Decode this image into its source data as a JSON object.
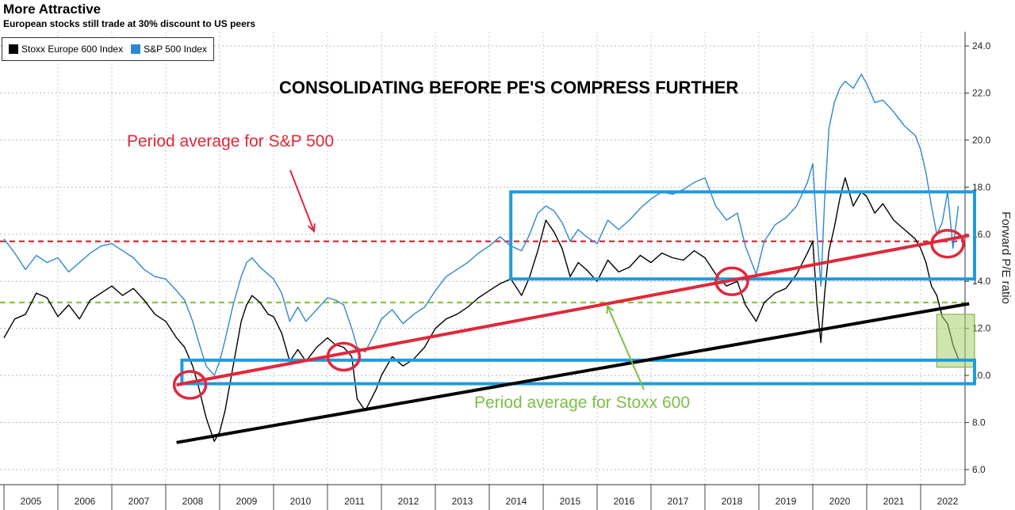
{
  "title": "More Attractive",
  "subtitle": "European stocks still trade at 30% discount to US peers",
  "annotations": {
    "headline": "CONSOLIDATING BEFORE PE'S COMPRESS FURTHER",
    "sp_avg_note": "Period average for S&P 500",
    "stoxx_avg_note": "Period average for Stoxx 600"
  },
  "colors": {
    "stoxx": "#000000",
    "sp500": "#2f86d4",
    "sp_avg": "#e0283a",
    "stoxx_avg": "#8cc63f",
    "box": "#1e9be0",
    "red_trend": "#e0283a",
    "black_trend": "#000000",
    "green_box": "#a8d06b"
  },
  "chart_data": {
    "type": "line",
    "ylabel": "Forward P/E ratio",
    "ylim": [
      6,
      24
    ],
    "yticks": [
      6.0,
      8.0,
      10.0,
      12.0,
      14.0,
      16.0,
      18.0,
      20.0,
      22.0,
      24.0
    ],
    "xlim": [
      2005.0,
      2023.0
    ],
    "xticks": [
      "2005",
      "2006",
      "2007",
      "2008",
      "2009",
      "2010",
      "2011",
      "2012",
      "2013",
      "2014",
      "2015",
      "2016",
      "2017",
      "2018",
      "2019",
      "2020",
      "2021",
      "2022"
    ],
    "legend": "top-left",
    "series": [
      {
        "name": "Stoxx Europe 600 Index",
        "x": [
          2005.0,
          2005.2,
          2005.4,
          2005.6,
          2005.8,
          2006.0,
          2006.2,
          2006.4,
          2006.6,
          2006.8,
          2007.0,
          2007.2,
          2007.4,
          2007.6,
          2007.8,
          2008.0,
          2008.2,
          2008.35,
          2008.5,
          2008.6,
          2008.75,
          2008.9,
          2009.0,
          2009.1,
          2009.25,
          2009.4,
          2009.5,
          2009.6,
          2009.75,
          2009.9,
          2010.0,
          2010.15,
          2010.3,
          2010.45,
          2010.6,
          2010.8,
          2011.0,
          2011.15,
          2011.3,
          2011.45,
          2011.55,
          2011.7,
          2011.9,
          2012.0,
          2012.2,
          2012.4,
          2012.6,
          2012.8,
          2013.0,
          2013.2,
          2013.4,
          2013.6,
          2013.8,
          2014.0,
          2014.2,
          2014.4,
          2014.6,
          2014.75,
          2014.9,
          2015.05,
          2015.2,
          2015.35,
          2015.5,
          2015.65,
          2015.8,
          2016.0,
          2016.2,
          2016.4,
          2016.6,
          2016.8,
          2017.0,
          2017.2,
          2017.4,
          2017.6,
          2017.8,
          2018.0,
          2018.2,
          2018.4,
          2018.6,
          2018.75,
          2018.95,
          2019.1,
          2019.3,
          2019.5,
          2019.7,
          2019.9,
          2020.0,
          2020.08,
          2020.15,
          2020.22,
          2020.3,
          2020.4,
          2020.5,
          2020.6,
          2020.75,
          2020.9,
          2021.0,
          2021.15,
          2021.3,
          2021.5,
          2021.7,
          2021.9,
          2022.0,
          2022.1,
          2022.2,
          2022.3,
          2022.4,
          2022.5,
          2022.6,
          2022.7
        ],
        "y": [
          11.6,
          12.4,
          12.6,
          13.5,
          13.3,
          12.5,
          13.0,
          12.4,
          13.2,
          13.5,
          13.8,
          13.4,
          13.7,
          13.2,
          12.6,
          12.3,
          11.6,
          11.2,
          10.4,
          9.6,
          8.2,
          7.2,
          7.6,
          8.5,
          10.4,
          12.3,
          13.0,
          13.4,
          13.1,
          12.6,
          12.5,
          11.8,
          10.6,
          11.1,
          10.6,
          11.2,
          11.6,
          11.3,
          11.2,
          10.8,
          9.0,
          8.5,
          9.4,
          10.0,
          10.8,
          10.4,
          10.7,
          11.2,
          12.0,
          12.4,
          12.6,
          12.9,
          13.3,
          13.6,
          13.9,
          14.1,
          13.4,
          14.2,
          15.3,
          16.6,
          16.1,
          15.4,
          14.2,
          14.8,
          14.5,
          14.0,
          14.9,
          14.4,
          14.6,
          15.1,
          14.8,
          15.2,
          15.0,
          14.9,
          15.3,
          15.0,
          14.3,
          13.8,
          14.0,
          13.0,
          12.3,
          13.1,
          13.5,
          13.7,
          14.3,
          15.2,
          15.7,
          13.0,
          11.4,
          13.5,
          15.3,
          16.3,
          17.5,
          18.4,
          17.2,
          17.8,
          17.6,
          16.9,
          17.3,
          16.6,
          16.2,
          15.8,
          15.4,
          14.8,
          13.8,
          13.4,
          12.5,
          12.2,
          11.3,
          10.7
        ]
      },
      {
        "name": "S&P 500 Index",
        "x": [
          2005.0,
          2005.2,
          2005.4,
          2005.6,
          2005.8,
          2006.0,
          2006.2,
          2006.4,
          2006.6,
          2006.8,
          2007.0,
          2007.2,
          2007.4,
          2007.6,
          2007.8,
          2008.0,
          2008.2,
          2008.35,
          2008.5,
          2008.6,
          2008.75,
          2008.9,
          2009.0,
          2009.1,
          2009.25,
          2009.4,
          2009.5,
          2009.6,
          2009.75,
          2009.9,
          2010.0,
          2010.15,
          2010.3,
          2010.45,
          2010.6,
          2010.8,
          2011.0,
          2011.15,
          2011.3,
          2011.45,
          2011.55,
          2011.7,
          2011.9,
          2012.0,
          2012.2,
          2012.4,
          2012.6,
          2012.8,
          2013.0,
          2013.2,
          2013.4,
          2013.6,
          2013.8,
          2014.0,
          2014.2,
          2014.4,
          2014.6,
          2014.75,
          2014.9,
          2015.05,
          2015.2,
          2015.35,
          2015.5,
          2015.65,
          2015.8,
          2016.0,
          2016.2,
          2016.4,
          2016.6,
          2016.8,
          2017.0,
          2017.2,
          2017.4,
          2017.6,
          2017.8,
          2018.0,
          2018.2,
          2018.4,
          2018.6,
          2018.75,
          2018.95,
          2019.1,
          2019.3,
          2019.5,
          2019.7,
          2019.9,
          2020.0,
          2020.08,
          2020.15,
          2020.22,
          2020.3,
          2020.4,
          2020.5,
          2020.6,
          2020.75,
          2020.9,
          2021.0,
          2021.15,
          2021.3,
          2021.5,
          2021.7,
          2021.9,
          2022.0,
          2022.1,
          2022.2,
          2022.3,
          2022.4,
          2022.5,
          2022.6,
          2022.7
        ],
        "y": [
          15.8,
          15.2,
          14.5,
          15.1,
          14.8,
          15.0,
          14.4,
          14.8,
          15.2,
          15.5,
          15.6,
          15.3,
          15.0,
          14.5,
          14.2,
          14.1,
          13.6,
          13.2,
          12.3,
          11.5,
          10.4,
          10.0,
          10.6,
          11.5,
          13.0,
          14.2,
          14.8,
          15.0,
          14.6,
          14.3,
          14.1,
          13.5,
          12.3,
          12.9,
          12.3,
          12.8,
          13.3,
          13.2,
          13.0,
          12.0,
          11.2,
          11.0,
          11.9,
          12.4,
          12.8,
          12.2,
          12.6,
          12.9,
          13.6,
          14.2,
          14.5,
          14.8,
          15.2,
          15.5,
          15.9,
          15.5,
          15.3,
          16.0,
          16.9,
          17.2,
          17.0,
          16.5,
          15.7,
          16.2,
          15.9,
          15.6,
          16.6,
          16.2,
          16.6,
          17.1,
          17.5,
          17.8,
          17.7,
          17.9,
          18.2,
          18.4,
          17.2,
          16.6,
          16.9,
          15.5,
          14.3,
          15.7,
          16.4,
          16.7,
          17.2,
          18.2,
          19.0,
          16.0,
          13.8,
          17.5,
          20.5,
          21.6,
          22.2,
          22.5,
          22.2,
          22.8,
          22.4,
          21.6,
          21.7,
          21.2,
          20.6,
          20.2,
          19.6,
          18.6,
          17.2,
          16.0,
          16.5,
          17.8,
          15.4,
          17.2
        ]
      }
    ],
    "reference_lines": [
      {
        "label": "Period average for S&P 500",
        "y": 15.7
      },
      {
        "label": "Period average for Stoxx 600",
        "y": 13.1
      }
    ]
  }
}
